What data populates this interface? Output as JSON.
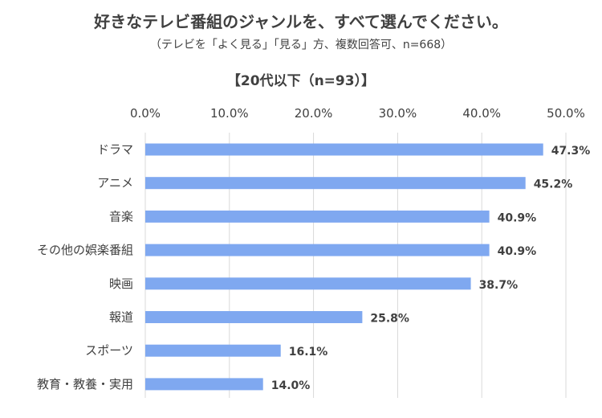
{
  "chart_data": {
    "type": "bar",
    "orientation": "horizontal",
    "title": "好きなテレビ番組のジャンルを、すべて選んでください。",
    "subtitle": "（テレビを「よく見る」「見る」方、複数回答可、n=668）",
    "group_label": "【20代以下（n=93）】",
    "categories": [
      "ドラマ",
      "アニメ",
      "音楽",
      "その他の娯楽番組",
      "映画",
      "報道",
      "スポーツ",
      "教育・教養・実用"
    ],
    "values": [
      47.3,
      45.2,
      40.9,
      40.9,
      38.7,
      25.8,
      16.1,
      14.0
    ],
    "value_labels": [
      "47.3%",
      "45.2%",
      "40.9%",
      "40.9%",
      "38.7%",
      "25.8%",
      "16.1%",
      "14.0%"
    ],
    "xlim": [
      0,
      50
    ],
    "x_ticks": [
      0,
      10,
      20,
      30,
      40,
      50
    ],
    "x_tick_labels": [
      "0.0%",
      "10.0%",
      "20.0%",
      "30.0%",
      "40.0%",
      "50.0%"
    ],
    "x_axis_position": "top",
    "grid": true,
    "bar_color": "#7fa8f0"
  }
}
